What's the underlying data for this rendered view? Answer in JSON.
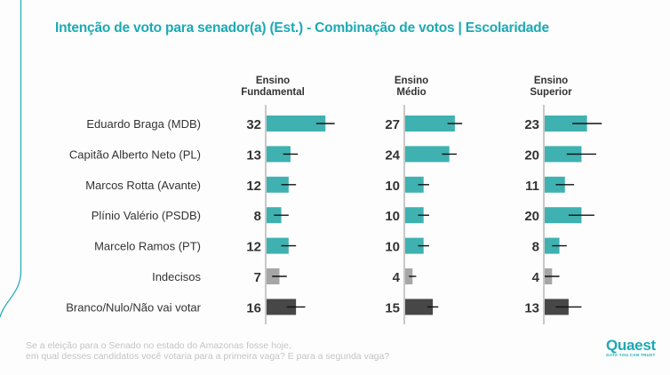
{
  "header": {
    "title": "Intenção de voto para senador(a) (Est.) - Combinação de votos | Escolaridade"
  },
  "colors": {
    "accent": "#1ca9b4",
    "candidate_bar": "#3fb1b1",
    "undecided_bar": "#a6a6a6",
    "blank_bar": "#474747",
    "error_bar": "#111111",
    "axis": "#c8c8c8"
  },
  "chart_data": {
    "type": "bar",
    "orientation": "horizontal",
    "title": "Intenção de voto para senador(a) (Est.) - Combinação de votos | Escolaridade",
    "categories": [
      "Eduardo Braga (MDB)",
      "Capitão Alberto Neto (PL)",
      "Marcos Rotta (Avante)",
      "Plínio Valério (PSDB)",
      "Marcelo Ramos (PT)",
      "Indecisos",
      "Branco/Nulo/Não vai votar"
    ],
    "category_kind": [
      "candidate",
      "candidate",
      "candidate",
      "candidate",
      "candidate",
      "undecided",
      "blank"
    ],
    "series": [
      {
        "name": "Ensino Fundamental",
        "name_lines": [
          "Ensino",
          "Fundamental"
        ],
        "values": [
          32,
          13,
          12,
          8,
          12,
          7,
          16
        ],
        "error_margin": [
          5,
          4,
          4,
          4,
          4,
          4,
          5
        ]
      },
      {
        "name": "Ensino Médio",
        "name_lines": [
          "Ensino",
          "Médio"
        ],
        "values": [
          27,
          24,
          10,
          10,
          10,
          4,
          15
        ],
        "error_margin": [
          4,
          4,
          3,
          3,
          3,
          2,
          3
        ]
      },
      {
        "name": "Ensino Superior",
        "name_lines": [
          "Ensino",
          "Superior"
        ],
        "values": [
          23,
          20,
          11,
          20,
          8,
          4,
          13
        ],
        "error_margin": [
          8,
          8,
          5,
          7,
          4,
          4,
          7
        ]
      }
    ],
    "xlim": [
      0,
      40
    ],
    "grid": false,
    "legend": "none",
    "data_labels": true
  },
  "footer": {
    "question_line1": "Se a eleição para o Senado no estado do Amazonas fosse hoje,",
    "question_line2": "em qual desses candidatos você votaria para a primeira vaga? E para a segunda vaga?"
  },
  "logo": {
    "name": "Quaest",
    "tagline": "DATA YOU CAN TRUST"
  }
}
